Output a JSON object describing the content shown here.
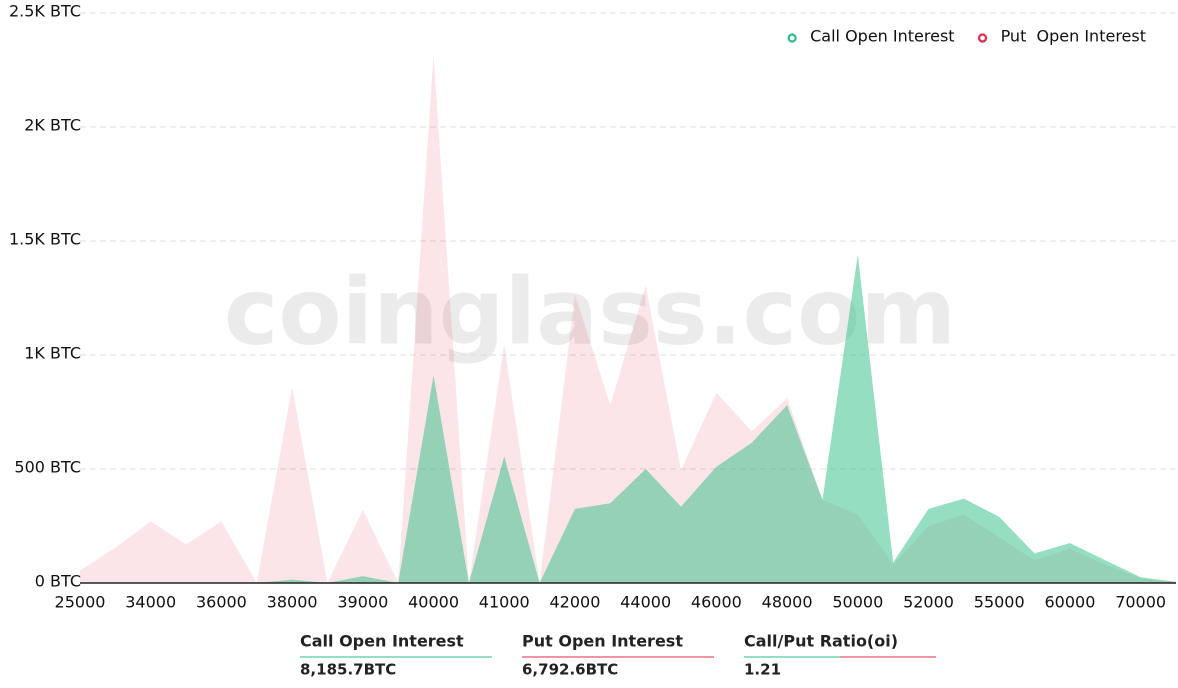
{
  "chart_data": {
    "type": "area",
    "watermark": "coinglass.com",
    "categories": [
      "25000",
      null,
      "34000",
      null,
      "36000",
      null,
      "38000",
      null,
      "39000",
      null,
      "40000",
      null,
      "41000",
      null,
      "42000",
      null,
      "44000",
      null,
      "46000",
      null,
      "48000",
      null,
      "50000",
      null,
      "52000",
      null,
      "55000",
      null,
      "60000",
      null,
      "70000",
      null
    ],
    "series": [
      {
        "name": "Put  Open Interest",
        "color": "#e0294a",
        "values": [
          55,
          155,
          270,
          170,
          270,
          0,
          860,
          0,
          320,
          0,
          2315,
          0,
          1045,
          0,
          1265,
          780,
          1305,
          495,
          835,
          665,
          810,
          365,
          300,
          80,
          250,
          300,
          200,
          100,
          150,
          80,
          20,
          5
        ]
      },
      {
        "name": "Call Open Interest",
        "color": "#2ebd85",
        "values": [
          0,
          0,
          0,
          0,
          0,
          0,
          15,
          0,
          30,
          0,
          910,
          0,
          555,
          0,
          325,
          350,
          500,
          335,
          510,
          615,
          780,
          365,
          1440,
          90,
          325,
          370,
          290,
          130,
          175,
          100,
          25,
          5
        ]
      }
    ],
    "ylim": [
      0,
      2500
    ],
    "yticks": [
      {
        "value": 0,
        "label": "0 BTC"
      },
      {
        "value": 500,
        "label": "500 BTC"
      },
      {
        "value": 1000,
        "label": "1K BTC"
      },
      {
        "value": 1500,
        "label": "1.5K BTC"
      },
      {
        "value": 2000,
        "label": "2K BTC"
      },
      {
        "value": 2500,
        "label": "2.5K BTC"
      }
    ],
    "grid": true,
    "legend": "top-right"
  },
  "summary": [
    {
      "label": "Call Open Interest",
      "value": "8,185.7BTC"
    },
    {
      "label": "Put Open Interest",
      "value": "6,792.6BTC"
    },
    {
      "label": "Call/Put Ratio(oi)",
      "value": "1.21"
    }
  ]
}
